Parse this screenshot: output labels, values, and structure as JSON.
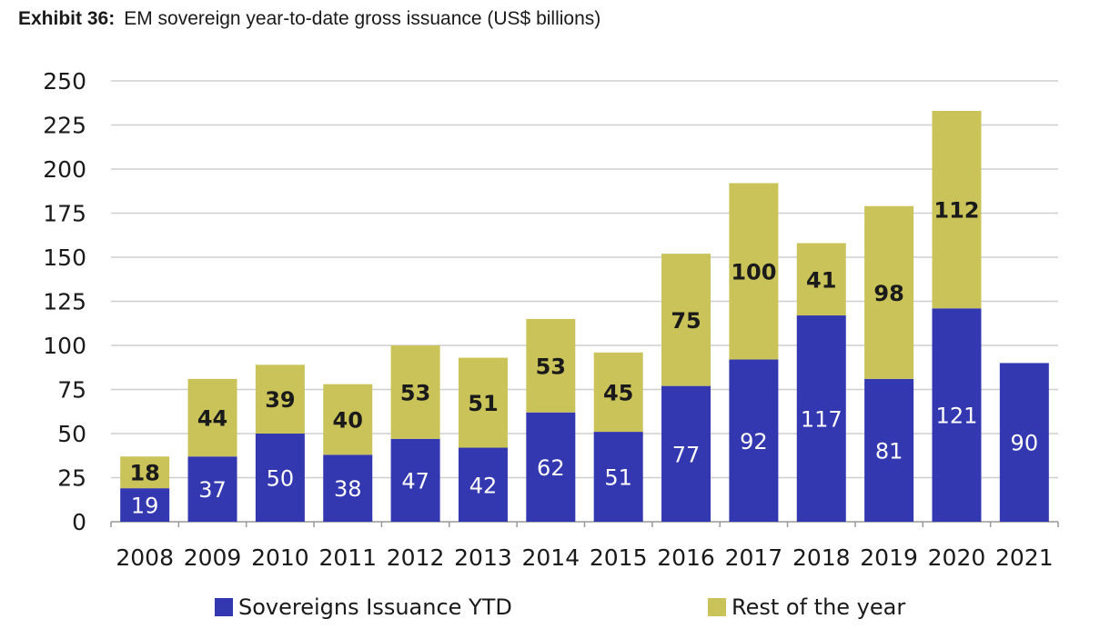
{
  "header": {
    "exhibit_label": "Exhibit 36:",
    "title": "EM sovereign year-to-date gross issuance (US$ billions)"
  },
  "colors": {
    "ytd": "#3438b0",
    "rest": "#c9c35a",
    "grid": "#cfcfcf",
    "axis": "#999999",
    "text": "#1a1a1a"
  },
  "chart_data": {
    "type": "bar",
    "stacked": true,
    "title": "EM sovereign year-to-date gross issuance (US$ billions)",
    "categories": [
      "2008",
      "2009",
      "2010",
      "2011",
      "2012",
      "2013",
      "2014",
      "2015",
      "2016",
      "2017",
      "2018",
      "2019",
      "2020",
      "2021"
    ],
    "series": [
      {
        "name": "Sovereigns Issuance YTD",
        "values": [
          19,
          37,
          50,
          38,
          47,
          42,
          62,
          51,
          77,
          92,
          117,
          81,
          121,
          90
        ]
      },
      {
        "name": "Rest of the year",
        "values": [
          18,
          44,
          39,
          40,
          53,
          51,
          53,
          45,
          75,
          100,
          41,
          98,
          112,
          null
        ]
      }
    ],
    "ylim": [
      0,
      250
    ],
    "yticks": [
      0,
      25,
      50,
      75,
      100,
      125,
      150,
      175,
      200,
      225,
      250
    ],
    "grid": true,
    "legend": "bottom"
  }
}
